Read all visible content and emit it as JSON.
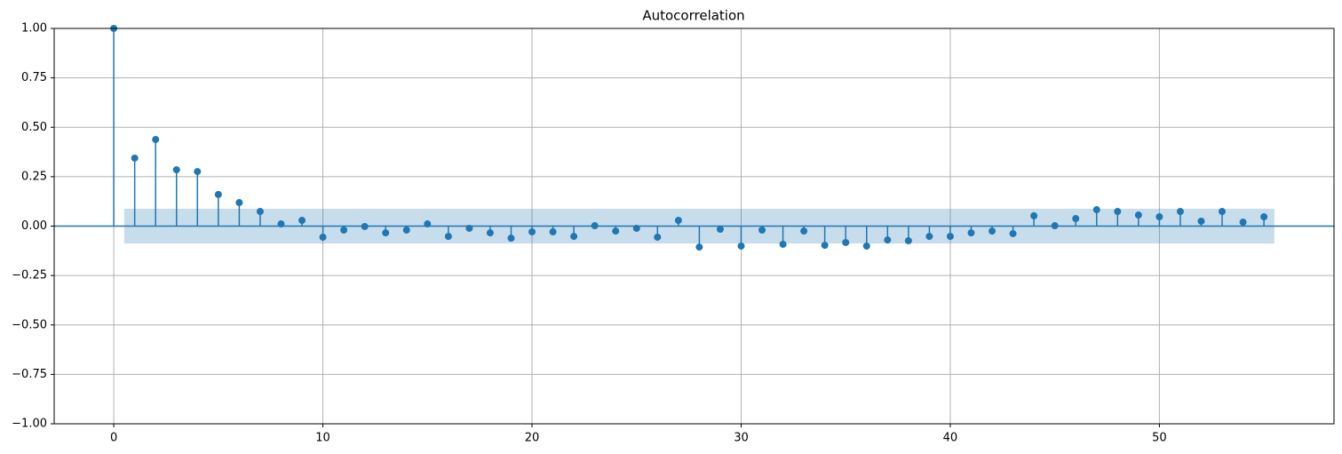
{
  "chart_data": {
    "type": "stem",
    "title": "Autocorrelation",
    "x": [
      0,
      1,
      2,
      3,
      4,
      5,
      6,
      7,
      8,
      9,
      10,
      11,
      12,
      13,
      14,
      15,
      16,
      17,
      18,
      19,
      20,
      21,
      22,
      23,
      24,
      25,
      26,
      27,
      28,
      29,
      30,
      31,
      32,
      33,
      34,
      35,
      36,
      37,
      38,
      39,
      40,
      41,
      42,
      43,
      44,
      45,
      46,
      47,
      48,
      49,
      50,
      51,
      52,
      53,
      54,
      55
    ],
    "values": [
      1.0,
      0.344,
      0.438,
      0.285,
      0.276,
      0.16,
      0.119,
      0.074,
      0.011,
      0.029,
      -0.056,
      -0.02,
      -0.002,
      -0.034,
      -0.02,
      0.011,
      -0.052,
      -0.011,
      -0.034,
      -0.061,
      -0.029,
      -0.029,
      -0.052,
      0.002,
      -0.025,
      -0.011,
      -0.056,
      0.029,
      -0.106,
      -0.016,
      -0.101,
      -0.02,
      -0.092,
      -0.025,
      -0.097,
      -0.083,
      -0.101,
      -0.07,
      -0.074,
      -0.052,
      -0.052,
      -0.034,
      -0.025,
      -0.038,
      0.052,
      0.002,
      0.038,
      0.083,
      0.074,
      0.056,
      0.047,
      0.074,
      0.025,
      0.074,
      0.02,
      0.047
    ],
    "color": "#1f77b4",
    "confint": [
      -0.088,
      0.088
    ],
    "confint_x": [
      0.5,
      55.5
    ],
    "xlim": [
      -2.85,
      58.35
    ],
    "ylim": [
      -1.0,
      1.0
    ],
    "xticks": [
      0,
      10,
      20,
      30,
      40,
      50
    ],
    "yticks": [
      {
        "value": -1.0,
        "label": "−1.00"
      },
      {
        "value": -0.75,
        "label": "−0.75"
      },
      {
        "value": -0.5,
        "label": "−0.50"
      },
      {
        "value": -0.25,
        "label": "−0.25"
      },
      {
        "value": 0.0,
        "label": "0.00"
      },
      {
        "value": 0.25,
        "label": "0.25"
      },
      {
        "value": 0.5,
        "label": "0.50"
      },
      {
        "value": 0.75,
        "label": "0.75"
      },
      {
        "value": 1.0,
        "label": "1.00"
      }
    ],
    "grid": true
  }
}
